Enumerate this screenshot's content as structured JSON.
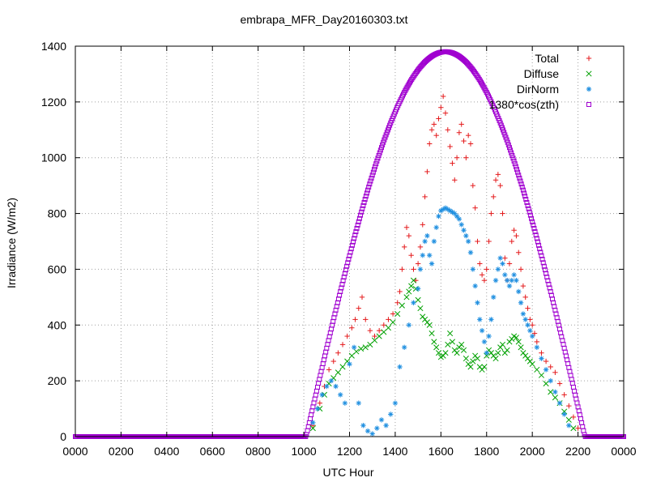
{
  "chart_data": {
    "type": "scatter",
    "title": "embrapa_MFR_Day20160303.txt",
    "xlabel": "UTC Hour",
    "ylabel": "Irradiance (W/m2)",
    "xlim": [
      0,
      2400
    ],
    "ylim": [
      0,
      1400
    ],
    "x_tick_labels": [
      "0000",
      "0200",
      "0400",
      "0600",
      "0800",
      "1000",
      "1200",
      "1400",
      "1600",
      "1800",
      "2000",
      "2200",
      "0000"
    ],
    "y_tick_labels": [
      "0",
      "200",
      "400",
      "600",
      "800",
      "1000",
      "1200",
      "1400"
    ],
    "grid": true,
    "legend_position": "top-right",
    "series": [
      {
        "name": "Total",
        "marker": "plus",
        "color": "#e41a1c",
        "points": [
          [
            1040,
            40
          ],
          [
            1070,
            120
          ],
          [
            1090,
            180
          ],
          [
            1110,
            240
          ],
          [
            1130,
            270
          ],
          [
            1150,
            300
          ],
          [
            1170,
            330
          ],
          [
            1190,
            360
          ],
          [
            1210,
            390
          ],
          [
            1225,
            420
          ],
          [
            1240,
            460
          ],
          [
            1255,
            500
          ],
          [
            1270,
            420
          ],
          [
            1290,
            380
          ],
          [
            1310,
            360
          ],
          [
            1330,
            380
          ],
          [
            1350,
            400
          ],
          [
            1370,
            420
          ],
          [
            1390,
            440
          ],
          [
            1410,
            480
          ],
          [
            1420,
            520
          ],
          [
            1430,
            600
          ],
          [
            1440,
            680
          ],
          [
            1450,
            750
          ],
          [
            1460,
            720
          ],
          [
            1470,
            650
          ],
          [
            1480,
            600
          ],
          [
            1490,
            560
          ],
          [
            1500,
            620
          ],
          [
            1510,
            680
          ],
          [
            1520,
            760
          ],
          [
            1530,
            860
          ],
          [
            1540,
            950
          ],
          [
            1550,
            1050
          ],
          [
            1560,
            1100
          ],
          [
            1570,
            1120
          ],
          [
            1580,
            1080
          ],
          [
            1590,
            1140
          ],
          [
            1600,
            1180
          ],
          [
            1610,
            1220
          ],
          [
            1620,
            1160
          ],
          [
            1630,
            1100
          ],
          [
            1640,
            1040
          ],
          [
            1650,
            980
          ],
          [
            1660,
            920
          ],
          [
            1670,
            1000
          ],
          [
            1680,
            1090
          ],
          [
            1690,
            1120
          ],
          [
            1700,
            1060
          ],
          [
            1710,
            1000
          ],
          [
            1720,
            1080
          ],
          [
            1730,
            1050
          ],
          [
            1740,
            900
          ],
          [
            1750,
            820
          ],
          [
            1760,
            700
          ],
          [
            1770,
            620
          ],
          [
            1780,
            580
          ],
          [
            1790,
            560
          ],
          [
            1800,
            600
          ],
          [
            1810,
            700
          ],
          [
            1820,
            800
          ],
          [
            1830,
            860
          ],
          [
            1840,
            920
          ],
          [
            1850,
            940
          ],
          [
            1860,
            900
          ],
          [
            1870,
            800
          ],
          [
            1880,
            640
          ],
          [
            1890,
            560
          ],
          [
            1900,
            620
          ],
          [
            1910,
            700
          ],
          [
            1920,
            740
          ],
          [
            1930,
            720
          ],
          [
            1940,
            660
          ],
          [
            1950,
            600
          ],
          [
            1960,
            540
          ],
          [
            1970,
            500
          ],
          [
            1980,
            460
          ],
          [
            1990,
            420
          ],
          [
            2000,
            400
          ],
          [
            2010,
            370
          ],
          [
            2020,
            340
          ],
          [
            2040,
            300
          ],
          [
            2060,
            270
          ],
          [
            2080,
            250
          ],
          [
            2100,
            230
          ],
          [
            2120,
            190
          ],
          [
            2140,
            150
          ],
          [
            2160,
            110
          ],
          [
            2180,
            70
          ],
          [
            2200,
            30
          ]
        ]
      },
      {
        "name": "Diffuse",
        "marker": "cross",
        "color": "#00a000",
        "points": [
          [
            1040,
            30
          ],
          [
            1070,
            100
          ],
          [
            1090,
            150
          ],
          [
            1110,
            190
          ],
          [
            1130,
            210
          ],
          [
            1150,
            230
          ],
          [
            1170,
            250
          ],
          [
            1190,
            270
          ],
          [
            1210,
            290
          ],
          [
            1230,
            305
          ],
          [
            1250,
            315
          ],
          [
            1270,
            320
          ],
          [
            1290,
            330
          ],
          [
            1310,
            345
          ],
          [
            1330,
            360
          ],
          [
            1350,
            375
          ],
          [
            1370,
            390
          ],
          [
            1390,
            410
          ],
          [
            1410,
            440
          ],
          [
            1430,
            470
          ],
          [
            1450,
            500
          ],
          [
            1460,
            520
          ],
          [
            1470,
            540
          ],
          [
            1480,
            560
          ],
          [
            1490,
            530
          ],
          [
            1500,
            490
          ],
          [
            1510,
            460
          ],
          [
            1520,
            430
          ],
          [
            1530,
            420
          ],
          [
            1540,
            410
          ],
          [
            1550,
            400
          ],
          [
            1560,
            370
          ],
          [
            1570,
            340
          ],
          [
            1580,
            320
          ],
          [
            1590,
            300
          ],
          [
            1600,
            285
          ],
          [
            1610,
            290
          ],
          [
            1620,
            300
          ],
          [
            1630,
            330
          ],
          [
            1640,
            370
          ],
          [
            1650,
            340
          ],
          [
            1660,
            310
          ],
          [
            1670,
            300
          ],
          [
            1680,
            320
          ],
          [
            1690,
            330
          ],
          [
            1700,
            310
          ],
          [
            1710,
            280
          ],
          [
            1720,
            260
          ],
          [
            1730,
            250
          ],
          [
            1740,
            270
          ],
          [
            1750,
            290
          ],
          [
            1760,
            280
          ],
          [
            1770,
            250
          ],
          [
            1780,
            240
          ],
          [
            1790,
            250
          ],
          [
            1800,
            290
          ],
          [
            1810,
            310
          ],
          [
            1820,
            300
          ],
          [
            1830,
            290
          ],
          [
            1840,
            280
          ],
          [
            1850,
            300
          ],
          [
            1860,
            320
          ],
          [
            1870,
            330
          ],
          [
            1880,
            300
          ],
          [
            1890,
            310
          ],
          [
            1900,
            340
          ],
          [
            1910,
            350
          ],
          [
            1920,
            360
          ],
          [
            1930,
            355
          ],
          [
            1940,
            340
          ],
          [
            1950,
            320
          ],
          [
            1960,
            300
          ],
          [
            1970,
            290
          ],
          [
            1980,
            280
          ],
          [
            1990,
            270
          ],
          [
            2000,
            260
          ],
          [
            2020,
            240
          ],
          [
            2040,
            220
          ],
          [
            2060,
            190
          ],
          [
            2080,
            160
          ],
          [
            2100,
            140
          ],
          [
            2120,
            120
          ],
          [
            2140,
            90
          ],
          [
            2160,
            60
          ],
          [
            2180,
            30
          ]
        ]
      },
      {
        "name": "DirNorm",
        "marker": "star",
        "color": "#1f8fe0",
        "points": [
          [
            1040,
            50
          ],
          [
            1060,
            100
          ],
          [
            1080,
            150
          ],
          [
            1100,
            180
          ],
          [
            1120,
            200
          ],
          [
            1140,
            180
          ],
          [
            1160,
            150
          ],
          [
            1180,
            120
          ],
          [
            1200,
            260
          ],
          [
            1220,
            320
          ],
          [
            1240,
            120
          ],
          [
            1260,
            40
          ],
          [
            1280,
            20
          ],
          [
            1300,
            10
          ],
          [
            1320,
            30
          ],
          [
            1340,
            60
          ],
          [
            1360,
            40
          ],
          [
            1380,
            80
          ],
          [
            1400,
            120
          ],
          [
            1420,
            250
          ],
          [
            1440,
            320
          ],
          [
            1460,
            400
          ],
          [
            1480,
            480
          ],
          [
            1500,
            530
          ],
          [
            1510,
            600
          ],
          [
            1520,
            650
          ],
          [
            1530,
            700
          ],
          [
            1540,
            720
          ],
          [
            1550,
            650
          ],
          [
            1560,
            620
          ],
          [
            1570,
            700
          ],
          [
            1580,
            750
          ],
          [
            1590,
            790
          ],
          [
            1600,
            810
          ],
          [
            1610,
            815
          ],
          [
            1620,
            820
          ],
          [
            1630,
            815
          ],
          [
            1640,
            810
          ],
          [
            1650,
            805
          ],
          [
            1660,
            800
          ],
          [
            1670,
            790
          ],
          [
            1680,
            780
          ],
          [
            1690,
            760
          ],
          [
            1700,
            740
          ],
          [
            1710,
            720
          ],
          [
            1720,
            700
          ],
          [
            1730,
            660
          ],
          [
            1740,
            600
          ],
          [
            1750,
            540
          ],
          [
            1760,
            480
          ],
          [
            1770,
            420
          ],
          [
            1780,
            380
          ],
          [
            1790,
            340
          ],
          [
            1800,
            300
          ],
          [
            1810,
            360
          ],
          [
            1820,
            420
          ],
          [
            1830,
            500
          ],
          [
            1840,
            560
          ],
          [
            1850,
            600
          ],
          [
            1860,
            640
          ],
          [
            1870,
            620
          ],
          [
            1880,
            580
          ],
          [
            1890,
            560
          ],
          [
            1900,
            540
          ],
          [
            1910,
            560
          ],
          [
            1920,
            580
          ],
          [
            1930,
            560
          ],
          [
            1940,
            520
          ],
          [
            1950,
            480
          ],
          [
            1960,
            440
          ],
          [
            1970,
            420
          ],
          [
            1980,
            400
          ],
          [
            1990,
            380
          ],
          [
            2000,
            360
          ],
          [
            2020,
            320
          ],
          [
            2040,
            280
          ],
          [
            2060,
            240
          ],
          [
            2080,
            200
          ],
          [
            2100,
            160
          ],
          [
            2120,
            120
          ],
          [
            2140,
            80
          ],
          [
            2160,
            40
          ]
        ]
      },
      {
        "name": "1380*cos(zth)",
        "marker": "square",
        "color": "#a000d0",
        "formula": "1380*cos(zth)",
        "day_start": 1010,
        "day_end": 2230,
        "peak_hour": 1620,
        "peak_value": 1380
      }
    ]
  }
}
